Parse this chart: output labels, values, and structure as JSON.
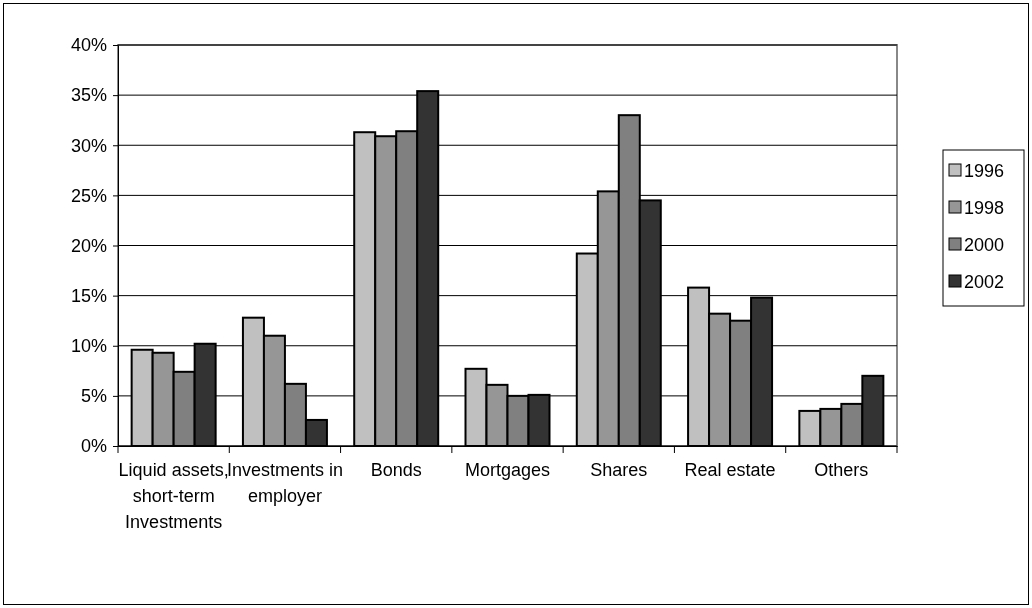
{
  "chart_data": {
    "type": "bar",
    "categories": [
      "Liquid assets, short-term Investments",
      "Investments in employer",
      "Bonds",
      "Mortgages",
      "Shares",
      "Real estate",
      "Others"
    ],
    "series": [
      {
        "name": "1996",
        "color": "#c0c0c0",
        "values": [
          9.6,
          12.8,
          31.3,
          7.7,
          19.2,
          15.8,
          3.5
        ]
      },
      {
        "name": "1998",
        "color": "#969696",
        "values": [
          9.3,
          11.0,
          30.9,
          6.1,
          25.4,
          13.2,
          3.7
        ]
      },
      {
        "name": "2000",
        "color": "#808080",
        "values": [
          7.4,
          6.2,
          31.4,
          5.0,
          33.0,
          12.5,
          4.2
        ]
      },
      {
        "name": "2002",
        "color": "#333333",
        "values": [
          10.2,
          2.6,
          35.4,
          5.1,
          24.5,
          14.8,
          7.0
        ]
      }
    ],
    "ylim": [
      0,
      40
    ],
    "yticks": [
      {
        "value": 0,
        "label": "0%"
      },
      {
        "value": 5,
        "label": "5%"
      },
      {
        "value": 10,
        "label": "10%"
      },
      {
        "value": 15,
        "label": "15%"
      },
      {
        "value": 20,
        "label": "20%"
      },
      {
        "value": 25,
        "label": "25%"
      },
      {
        "value": 30,
        "label": "30%"
      },
      {
        "value": 35,
        "label": "35%"
      },
      {
        "value": 40,
        "label": "40%"
      }
    ],
    "grid": "y",
    "legend": "right"
  }
}
